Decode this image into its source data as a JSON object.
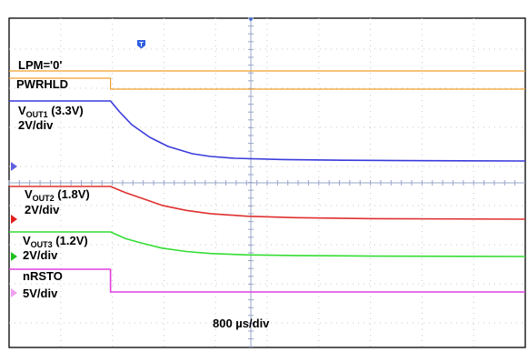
{
  "chart_data": {
    "type": "line",
    "title": "",
    "xlabel": "800 µs/div",
    "x_unit": "µs",
    "x_per_div": 800,
    "xlim": [
      0,
      8000
    ],
    "grid": true,
    "trigger_marker": "T",
    "channels": [
      {
        "id": "lpm",
        "text": "LPM='0'",
        "subscript": "",
        "text_after": "",
        "scale": "",
        "color": "#f0a030",
        "style": "digital",
        "x": [
          0,
          8000
        ],
        "y": [
          0,
          0
        ]
      },
      {
        "id": "pwrhld",
        "text": "PWRHLD",
        "subscript": "",
        "text_after": "",
        "scale": "",
        "color": "#f0a030",
        "style": "digital",
        "x": [
          0,
          1150,
          1150,
          8000
        ],
        "y": [
          1,
          1,
          0,
          0
        ]
      },
      {
        "id": "vout1",
        "text": "V",
        "subscript": "OUT1",
        "text_after": " (3.3V)",
        "scale": "2V/div",
        "color": "#3b3bdc",
        "style": "analog",
        "unit": "V",
        "x": [
          0,
          1150,
          1300,
          1500,
          1800,
          2100,
          2500,
          2800,
          3200,
          4000,
          5000,
          6000,
          8000
        ],
        "y": [
          3.3,
          3.3,
          2.7,
          2.0,
          1.3,
          0.8,
          0.4,
          0.25,
          0.15,
          0.08,
          0.04,
          0.02,
          0.0
        ]
      },
      {
        "id": "vout2",
        "text": "V",
        "subscript": "OUT2",
        "text_after": " (1.8V)",
        "scale": "2V/div",
        "color": "#e03030",
        "style": "analog",
        "unit": "V",
        "x": [
          0,
          1150,
          1400,
          1700,
          2000,
          2400,
          2800,
          3400,
          4200,
          5500,
          8000
        ],
        "y": [
          1.8,
          1.8,
          1.55,
          1.3,
          1.05,
          0.85,
          0.72,
          0.62,
          0.56,
          0.52,
          0.5
        ]
      },
      {
        "id": "vout3",
        "text": "V",
        "subscript": "OUT3",
        "text_after": " (1.2V)",
        "scale": "2V/div",
        "color": "#33dd33",
        "style": "analog",
        "unit": "V",
        "x": [
          0,
          1150,
          1400,
          1700,
          2000,
          2400,
          2800,
          3400,
          4200,
          5500,
          8000
        ],
        "y": [
          1.2,
          1.2,
          1.0,
          0.85,
          0.72,
          0.62,
          0.56,
          0.52,
          0.5,
          0.48,
          0.47
        ]
      },
      {
        "id": "nrsto",
        "text": "nRSTO",
        "subscript": "",
        "text_after": "",
        "scale": "5V/div",
        "color": "#e040e0",
        "style": "analog",
        "unit": "V",
        "x": [
          0,
          1150,
          1150,
          8000
        ],
        "y": [
          3.3,
          3.3,
          0,
          0
        ]
      }
    ]
  }
}
